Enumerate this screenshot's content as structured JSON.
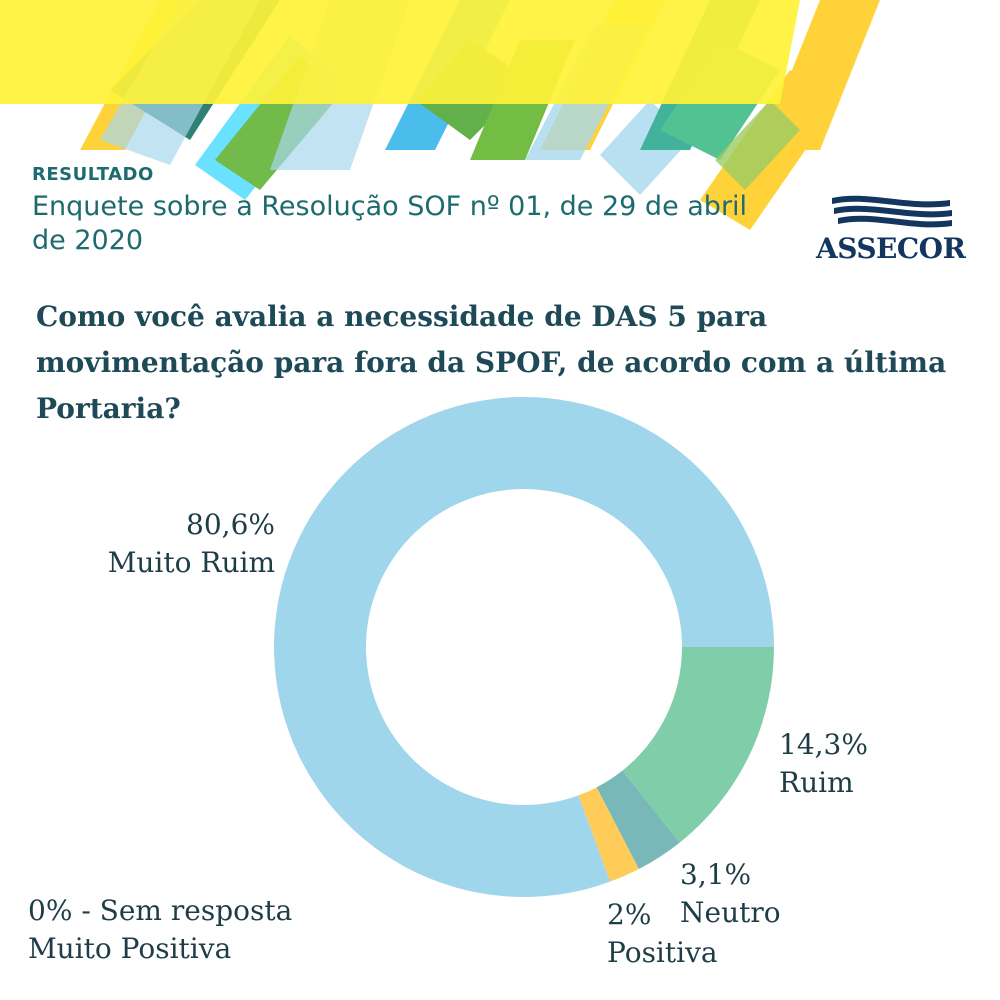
{
  "header": {
    "label": "RESULTADO",
    "title": "Enquete sobre a Resolução SOF nº 01, de 29 de abril de 2020"
  },
  "logo": {
    "text": "ASSECOR"
  },
  "question": "Como você avalia a necessidade de DAS 5 para movimentação para fora da SPOF, de acordo com a última Portaria?",
  "colors": {
    "muito_ruim": "#a0d6eb",
    "ruim": "#7fcea9",
    "neutro": "#78b8b9",
    "positiva": "#ffcc5a",
    "title": "#1e4a57",
    "header_text": "#1d6b6f",
    "header_bg": "#fff238",
    "logo": "#13365f"
  },
  "chart_data": {
    "type": "pie",
    "donut": true,
    "start_angle_deg": 90,
    "direction": "clockwise",
    "slices": [
      {
        "label": "Ruim",
        "value": 14.3,
        "value_label": "14,3%",
        "color": "#7fcea9"
      },
      {
        "label": "Neutro",
        "value": 3.1,
        "value_label": "3,1%",
        "color": "#78b8b9"
      },
      {
        "label": "Positiva",
        "value": 2,
        "value_label": "2%",
        "color": "#ffcc5a"
      },
      {
        "label": "Muito Ruim",
        "value": 80.6,
        "value_label": "80,6%",
        "color": "#a0d6eb"
      }
    ],
    "note": "0% - Sem resposta",
    "note_label": "Muito Positiva"
  }
}
